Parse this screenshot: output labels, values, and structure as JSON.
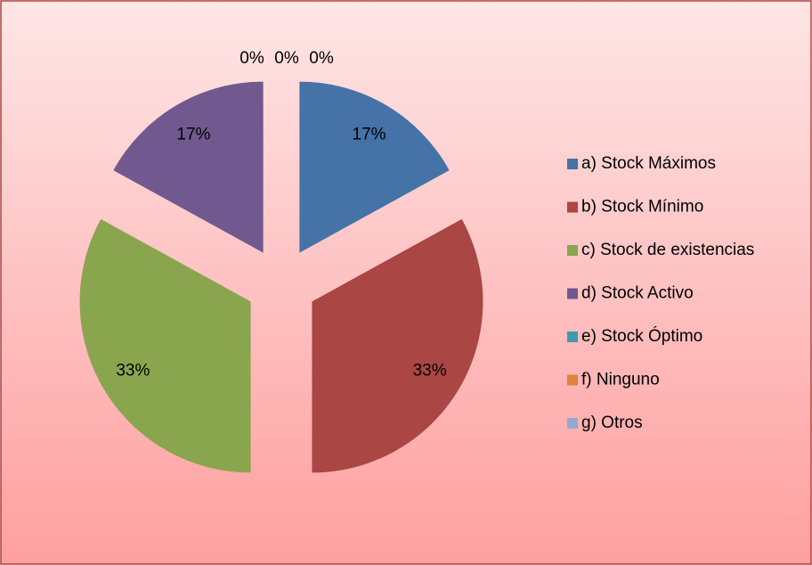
{
  "chart_data": {
    "type": "pie",
    "categories": [
      "a) Stock Máximos",
      "b)  Stock Mínimo",
      "c) Stock de existencias",
      "d)  Stock Activo",
      "e)  Stock Óptimo",
      "f) Ninguno",
      "g) Otros"
    ],
    "values": [
      17,
      33,
      33,
      17,
      0,
      0,
      0
    ],
    "value_labels": [
      "17%",
      "33%",
      "33%",
      "17%",
      "0%",
      "0%",
      "0%"
    ],
    "colors": [
      "#4572a7",
      "#aa4643",
      "#89a54e",
      "#71588f",
      "#4198af",
      "#db843d",
      "#93a9cf"
    ],
    "legend": "right"
  }
}
